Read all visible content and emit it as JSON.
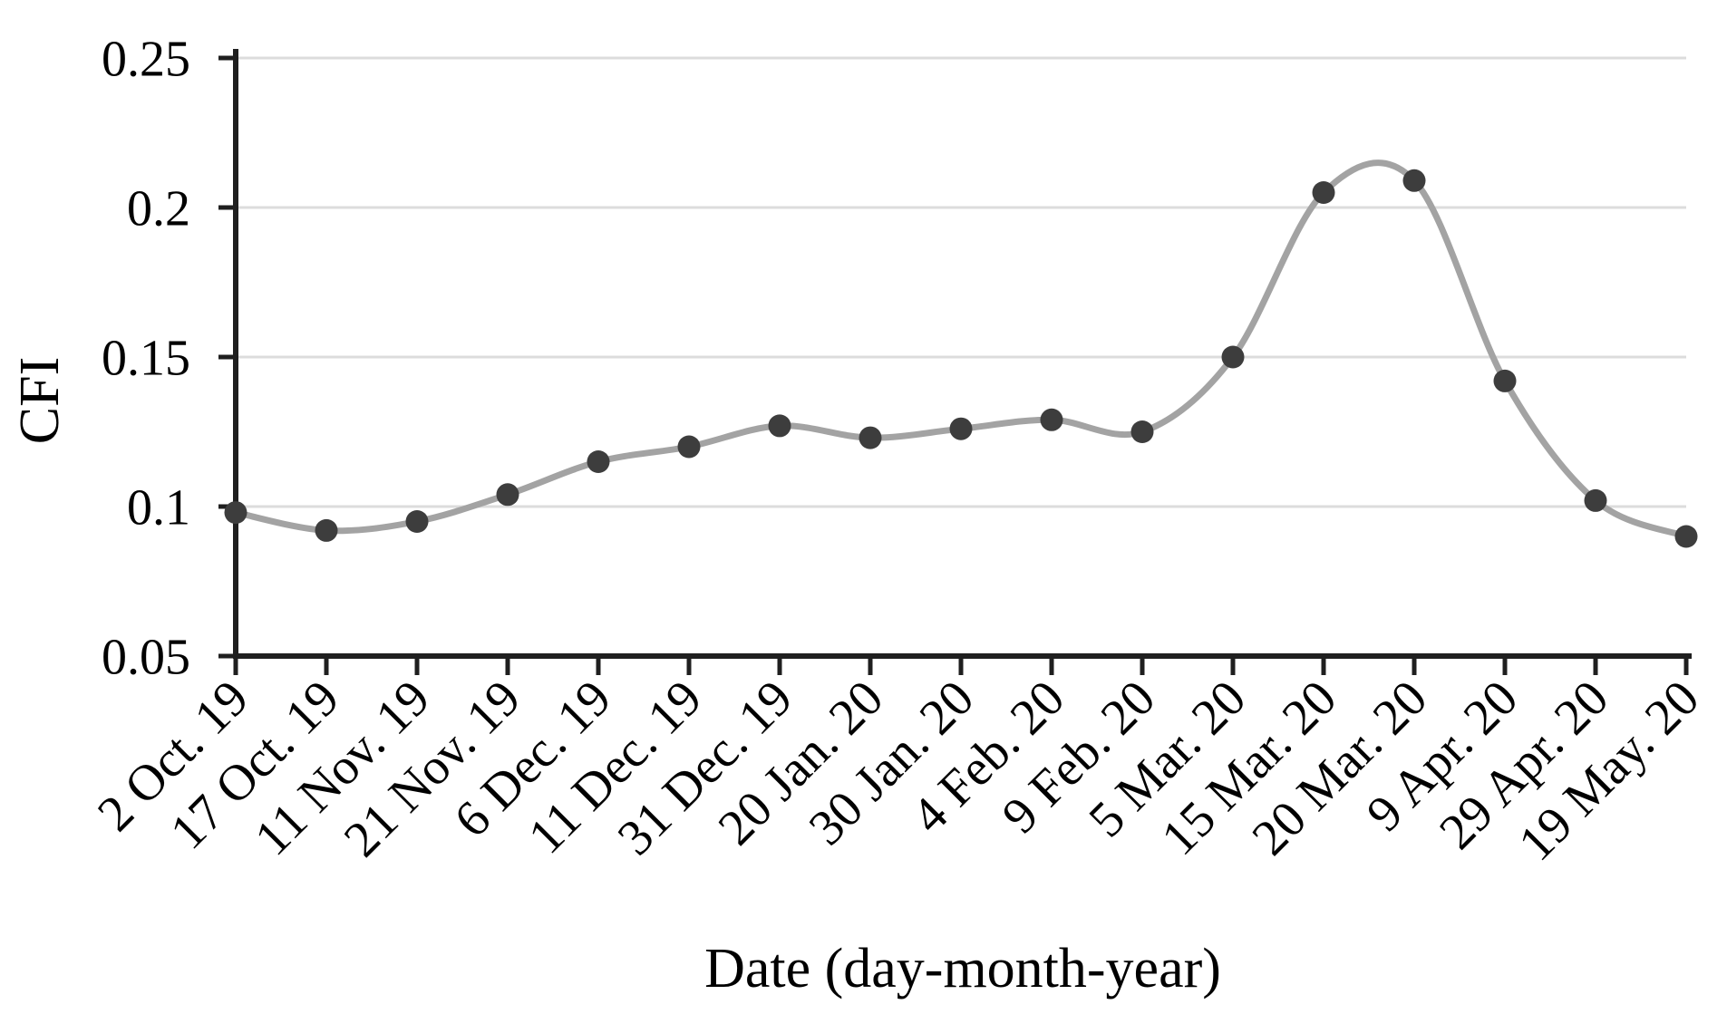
{
  "figure": {
    "background": "#ffffff"
  },
  "chart_data": {
    "type": "line",
    "title": "",
    "xlabel": "Date (day-month-year)",
    "ylabel": "CFI",
    "categories": [
      "2 Oct. 19",
      "17 Oct. 19",
      "11 Nov. 19",
      "21 Nov. 19",
      "6 Dec. 19",
      "11 Dec. 19",
      "31 Dec. 19",
      "20 Jan. 20",
      "30 Jan. 20",
      "4 Feb. 20",
      "9 Feb. 20",
      "5 Mar. 20",
      "15 Mar. 20",
      "20 Mar. 20",
      "9 Apr. 20",
      "29 Apr. 20",
      "19 May. 20"
    ],
    "series": [
      {
        "name": "CFI",
        "values": [
          0.098,
          0.092,
          0.095,
          0.104,
          0.115,
          0.12,
          0.127,
          0.123,
          0.126,
          0.129,
          0.125,
          0.15,
          0.205,
          0.209,
          0.142,
          0.102,
          0.09
        ]
      }
    ],
    "ylim": [
      0.05,
      0.25
    ],
    "yticks": [
      0.05,
      0.1,
      0.15,
      0.2,
      0.25
    ],
    "ytick_labels": [
      "0.05",
      "0.1",
      "0.15",
      "0.2",
      "0.25"
    ],
    "grid": "horizontal",
    "legend": "none",
    "smooth": true,
    "marker": "circle",
    "colors": {
      "line": "#a3a3a3",
      "marker": "#3d3d3d",
      "gridline": "#dcdcdc",
      "axis": "#1f1f1f",
      "text": "#000000"
    }
  }
}
